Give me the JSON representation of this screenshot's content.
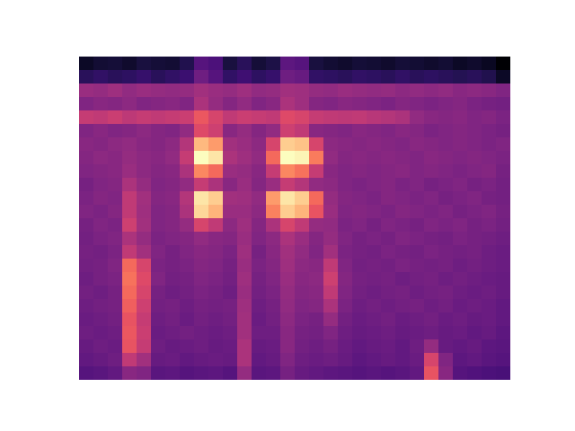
{
  "chart_data": {
    "type": "heatmap",
    "tick_labels": false,
    "cells": [
      [
        0.12,
        0.14,
        0.15,
        0.13,
        0.16,
        0.15,
        0.14,
        0.18,
        0.3,
        0.28,
        0.16,
        0.2,
        0.15,
        0.17,
        0.32,
        0.3,
        0.16,
        0.14,
        0.13,
        0.15,
        0.14,
        0.13,
        0.15,
        0.14,
        0.13,
        0.14,
        0.12,
        0.13,
        0.11,
        0.05
      ],
      [
        0.2,
        0.22,
        0.2,
        0.21,
        0.23,
        0.2,
        0.22,
        0.24,
        0.36,
        0.3,
        0.22,
        0.25,
        0.21,
        0.23,
        0.36,
        0.34,
        0.22,
        0.21,
        0.2,
        0.22,
        0.21,
        0.2,
        0.22,
        0.2,
        0.21,
        0.2,
        0.19,
        0.2,
        0.18,
        0.12
      ],
      [
        0.46,
        0.45,
        0.47,
        0.44,
        0.46,
        0.45,
        0.44,
        0.45,
        0.48,
        0.46,
        0.45,
        0.47,
        0.44,
        0.45,
        0.48,
        0.47,
        0.45,
        0.44,
        0.46,
        0.45,
        0.44,
        0.45,
        0.43,
        0.44,
        0.43,
        0.44,
        0.42,
        0.43,
        0.42,
        0.4
      ],
      [
        0.4,
        0.42,
        0.41,
        0.43,
        0.4,
        0.41,
        0.42,
        0.4,
        0.5,
        0.45,
        0.41,
        0.44,
        0.4,
        0.42,
        0.5,
        0.47,
        0.41,
        0.4,
        0.42,
        0.41,
        0.4,
        0.39,
        0.41,
        0.4,
        0.39,
        0.4,
        0.41,
        0.39,
        0.38,
        0.37
      ],
      [
        0.56,
        0.55,
        0.57,
        0.54,
        0.56,
        0.55,
        0.56,
        0.57,
        0.66,
        0.6,
        0.55,
        0.57,
        0.56,
        0.55,
        0.62,
        0.6,
        0.56,
        0.55,
        0.54,
        0.55,
        0.53,
        0.52,
        0.5,
        0.44,
        0.42,
        0.41,
        0.42,
        0.4,
        0.41,
        0.39
      ],
      [
        0.4,
        0.42,
        0.4,
        0.41,
        0.43,
        0.41,
        0.4,
        0.44,
        0.62,
        0.58,
        0.42,
        0.45,
        0.41,
        0.44,
        0.58,
        0.55,
        0.42,
        0.41,
        0.4,
        0.42,
        0.41,
        0.4,
        0.42,
        0.41,
        0.39,
        0.4,
        0.41,
        0.4,
        0.39,
        0.38
      ],
      [
        0.42,
        0.41,
        0.43,
        0.44,
        0.42,
        0.41,
        0.43,
        0.52,
        0.86,
        0.8,
        0.48,
        0.46,
        0.43,
        0.6,
        0.9,
        0.88,
        0.6,
        0.43,
        0.42,
        0.41,
        0.42,
        0.41,
        0.4,
        0.42,
        0.41,
        0.4,
        0.41,
        0.4,
        0.39,
        0.4
      ],
      [
        0.41,
        0.43,
        0.42,
        0.45,
        0.43,
        0.42,
        0.44,
        0.56,
        1.0,
        0.95,
        0.5,
        0.47,
        0.44,
        0.7,
        1.0,
        0.98,
        0.74,
        0.44,
        0.41,
        0.42,
        0.41,
        0.42,
        0.41,
        0.4,
        0.42,
        0.41,
        0.4,
        0.41,
        0.4,
        0.39
      ],
      [
        0.4,
        0.41,
        0.42,
        0.46,
        0.43,
        0.41,
        0.42,
        0.5,
        0.76,
        0.7,
        0.46,
        0.45,
        0.42,
        0.56,
        0.76,
        0.72,
        0.56,
        0.42,
        0.4,
        0.41,
        0.4,
        0.41,
        0.42,
        0.4,
        0.41,
        0.4,
        0.39,
        0.4,
        0.41,
        0.38
      ],
      [
        0.38,
        0.4,
        0.41,
        0.5,
        0.45,
        0.4,
        0.41,
        0.44,
        0.56,
        0.5,
        0.42,
        0.46,
        0.41,
        0.46,
        0.56,
        0.52,
        0.44,
        0.43,
        0.4,
        0.39,
        0.4,
        0.41,
        0.39,
        0.4,
        0.38,
        0.39,
        0.4,
        0.38,
        0.39,
        0.37
      ],
      [
        0.39,
        0.41,
        0.4,
        0.55,
        0.48,
        0.41,
        0.42,
        0.52,
        0.95,
        0.9,
        0.48,
        0.47,
        0.44,
        0.8,
        0.95,
        0.9,
        0.7,
        0.45,
        0.41,
        0.4,
        0.39,
        0.41,
        0.4,
        0.39,
        0.4,
        0.38,
        0.39,
        0.4,
        0.38,
        0.37
      ],
      [
        0.4,
        0.39,
        0.41,
        0.55,
        0.47,
        0.4,
        0.41,
        0.5,
        0.92,
        0.85,
        0.46,
        0.46,
        0.43,
        0.75,
        0.9,
        0.85,
        0.65,
        0.46,
        0.4,
        0.41,
        0.4,
        0.39,
        0.41,
        0.4,
        0.39,
        0.4,
        0.38,
        0.39,
        0.4,
        0.38
      ],
      [
        0.38,
        0.4,
        0.39,
        0.58,
        0.48,
        0.4,
        0.41,
        0.45,
        0.6,
        0.55,
        0.43,
        0.47,
        0.41,
        0.5,
        0.6,
        0.55,
        0.45,
        0.44,
        0.39,
        0.4,
        0.38,
        0.4,
        0.39,
        0.38,
        0.4,
        0.39,
        0.4,
        0.38,
        0.39,
        0.37
      ],
      [
        0.37,
        0.39,
        0.4,
        0.5,
        0.45,
        0.39,
        0.4,
        0.41,
        0.44,
        0.42,
        0.41,
        0.46,
        0.4,
        0.43,
        0.5,
        0.46,
        0.41,
        0.45,
        0.4,
        0.38,
        0.39,
        0.38,
        0.4,
        0.39,
        0.38,
        0.37,
        0.39,
        0.38,
        0.37,
        0.36
      ],
      [
        0.38,
        0.37,
        0.39,
        0.55,
        0.48,
        0.4,
        0.38,
        0.4,
        0.42,
        0.41,
        0.39,
        0.47,
        0.38,
        0.42,
        0.48,
        0.44,
        0.4,
        0.48,
        0.39,
        0.38,
        0.37,
        0.39,
        0.38,
        0.37,
        0.39,
        0.38,
        0.37,
        0.38,
        0.36,
        0.35
      ],
      [
        0.37,
        0.38,
        0.4,
        0.7,
        0.6,
        0.39,
        0.38,
        0.39,
        0.41,
        0.4,
        0.38,
        0.46,
        0.39,
        0.41,
        0.47,
        0.43,
        0.42,
        0.55,
        0.4,
        0.37,
        0.38,
        0.37,
        0.39,
        0.38,
        0.37,
        0.38,
        0.36,
        0.37,
        0.36,
        0.35
      ],
      [
        0.36,
        0.38,
        0.39,
        0.72,
        0.62,
        0.4,
        0.37,
        0.38,
        0.4,
        0.39,
        0.37,
        0.47,
        0.38,
        0.4,
        0.46,
        0.42,
        0.43,
        0.58,
        0.41,
        0.38,
        0.37,
        0.38,
        0.36,
        0.37,
        0.38,
        0.36,
        0.37,
        0.36,
        0.35,
        0.34
      ],
      [
        0.37,
        0.36,
        0.38,
        0.7,
        0.6,
        0.38,
        0.36,
        0.37,
        0.39,
        0.38,
        0.36,
        0.46,
        0.37,
        0.39,
        0.45,
        0.41,
        0.42,
        0.55,
        0.4,
        0.37,
        0.36,
        0.37,
        0.38,
        0.36,
        0.37,
        0.38,
        0.36,
        0.35,
        0.36,
        0.34
      ],
      [
        0.36,
        0.37,
        0.38,
        0.68,
        0.58,
        0.37,
        0.38,
        0.36,
        0.38,
        0.37,
        0.38,
        0.47,
        0.36,
        0.38,
        0.44,
        0.4,
        0.41,
        0.5,
        0.39,
        0.36,
        0.37,
        0.36,
        0.37,
        0.38,
        0.36,
        0.37,
        0.35,
        0.36,
        0.35,
        0.33
      ],
      [
        0.35,
        0.36,
        0.37,
        0.65,
        0.56,
        0.36,
        0.37,
        0.35,
        0.37,
        0.36,
        0.37,
        0.48,
        0.35,
        0.37,
        0.43,
        0.39,
        0.38,
        0.45,
        0.37,
        0.35,
        0.36,
        0.37,
        0.35,
        0.36,
        0.37,
        0.35,
        0.36,
        0.34,
        0.35,
        0.33
      ],
      [
        0.36,
        0.35,
        0.36,
        0.66,
        0.57,
        0.35,
        0.36,
        0.37,
        0.36,
        0.35,
        0.36,
        0.48,
        0.36,
        0.36,
        0.42,
        0.38,
        0.37,
        0.4,
        0.36,
        0.34,
        0.35,
        0.36,
        0.34,
        0.35,
        0.36,
        0.34,
        0.35,
        0.33,
        0.34,
        0.32
      ],
      [
        0.34,
        0.36,
        0.35,
        0.65,
        0.56,
        0.36,
        0.34,
        0.35,
        0.36,
        0.34,
        0.35,
        0.5,
        0.34,
        0.35,
        0.42,
        0.37,
        0.36,
        0.38,
        0.35,
        0.33,
        0.34,
        0.35,
        0.33,
        0.36,
        0.45,
        0.34,
        0.33,
        0.34,
        0.32,
        0.31
      ],
      [
        0.33,
        0.34,
        0.36,
        0.55,
        0.48,
        0.34,
        0.35,
        0.33,
        0.34,
        0.35,
        0.34,
        0.5,
        0.33,
        0.34,
        0.4,
        0.36,
        0.35,
        0.36,
        0.34,
        0.32,
        0.33,
        0.34,
        0.33,
        0.35,
        0.6,
        0.4,
        0.32,
        0.33,
        0.31,
        0.3
      ],
      [
        0.3,
        0.31,
        0.33,
        0.42,
        0.4,
        0.31,
        0.32,
        0.3,
        0.31,
        0.32,
        0.3,
        0.45,
        0.31,
        0.32,
        0.38,
        0.34,
        0.33,
        0.32,
        0.31,
        0.3,
        0.31,
        0.3,
        0.31,
        0.33,
        0.65,
        0.42,
        0.3,
        0.29,
        0.28,
        0.27
      ]
    ]
  }
}
